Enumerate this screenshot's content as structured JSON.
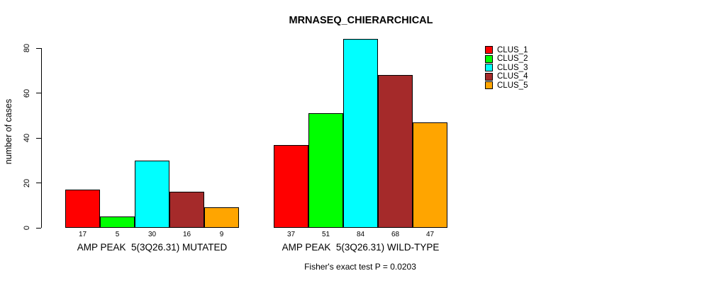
{
  "page": {
    "background": "#ffffff",
    "text_color": "#000000"
  },
  "chart_data": {
    "type": "bar",
    "title": "MRNASEQ_CHIERARCHICAL",
    "xlabel": "",
    "ylabel": "number of cases",
    "ylim": [
      0,
      84
    ],
    "yticks": [
      0,
      20,
      40,
      60,
      80
    ],
    "grid": false,
    "legend_position": "right-outside",
    "bar_value_labels": true,
    "categories": [
      "AMP PEAK  5(3Q26.31) MUTATED",
      "AMP PEAK  5(3Q26.31) WILD-TYPE"
    ],
    "series": [
      {
        "name": "CLUS_1",
        "color": "#ff0000",
        "values": [
          17,
          37
        ]
      },
      {
        "name": "CLUS_2",
        "color": "#00ff00",
        "values": [
          5,
          51
        ]
      },
      {
        "name": "CLUS_3",
        "color": "#00ffff",
        "values": [
          30,
          84
        ]
      },
      {
        "name": "CLUS_4",
        "color": "#a52a2a",
        "values": [
          16,
          68
        ]
      },
      {
        "name": "CLUS_5",
        "color": "#ffa500",
        "values": [
          9,
          47
        ]
      }
    ],
    "footnote": "Fisher's exact test P = 0.0203"
  }
}
